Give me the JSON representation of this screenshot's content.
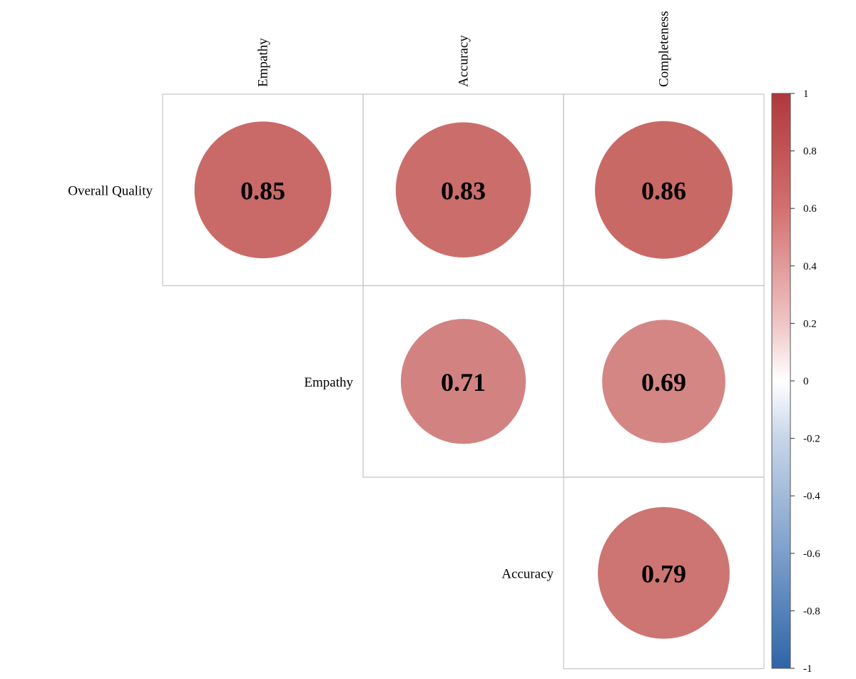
{
  "chart_data": {
    "type": "heatmap",
    "style": "correlation-matrix-circles",
    "columns": [
      "Empathy",
      "Accuracy",
      "Completeness"
    ],
    "rows": [
      "Overall Quality",
      "Empathy",
      "Accuracy"
    ],
    "cells": [
      {
        "row": "Overall Quality",
        "col": "Empathy",
        "value": 0.85
      },
      {
        "row": "Overall Quality",
        "col": "Accuracy",
        "value": 0.83
      },
      {
        "row": "Overall Quality",
        "col": "Completeness",
        "value": 0.86
      },
      {
        "row": "Empathy",
        "col": "Accuracy",
        "value": 0.71
      },
      {
        "row": "Empathy",
        "col": "Completeness",
        "value": 0.69
      },
      {
        "row": "Accuracy",
        "col": "Completeness",
        "value": 0.79
      }
    ],
    "value_labels": [
      "0.85",
      "0.83",
      "0.86",
      "0.71",
      "0.69",
      "0.79"
    ],
    "color_scale": {
      "range": [
        -1,
        1
      ],
      "ticks": [
        "1",
        "0.8",
        "0.6",
        "0.4",
        "0.2",
        "0",
        "-0.2",
        "-0.4",
        "-0.6",
        "-0.8",
        "-1"
      ],
      "colors": {
        "negative": "#3b6fb0",
        "zero": "#ffffff",
        "positive": "#c0504d"
      }
    },
    "legend_position": "right",
    "layout": "upper-triangle"
  }
}
